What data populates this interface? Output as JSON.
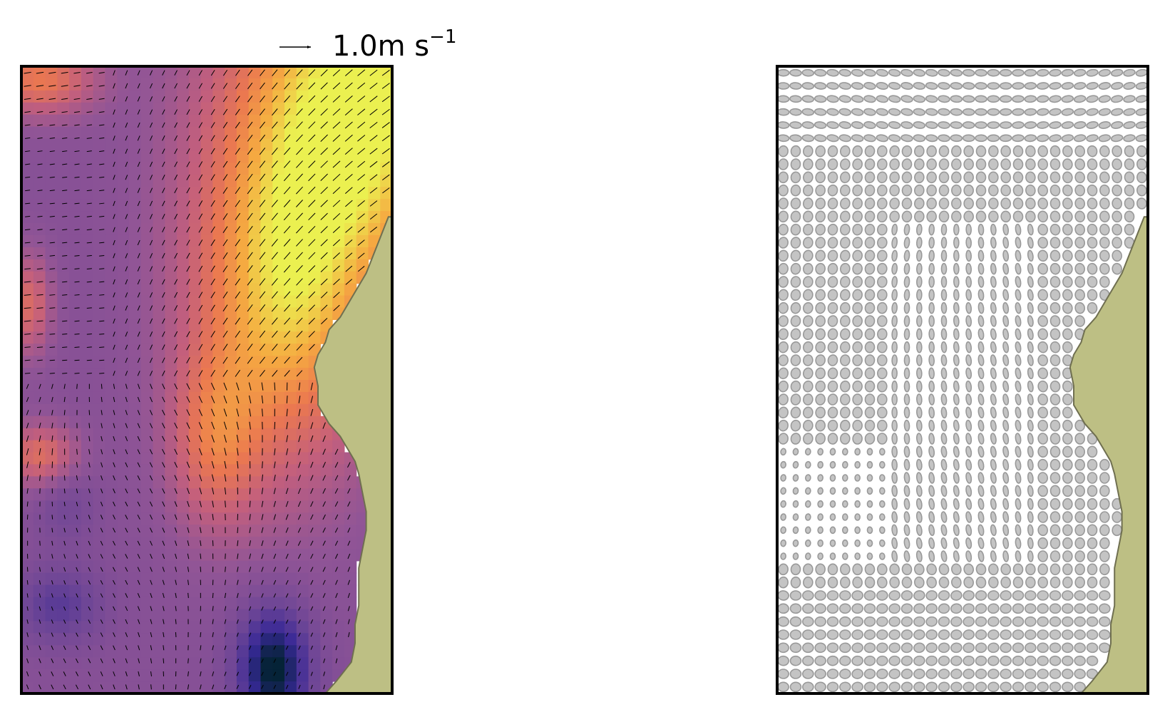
{
  "figure": {
    "scale_key": {
      "value": "1.0",
      "unit": "m s",
      "exponent": "−1",
      "magnitude_ms": 1.0
    }
  },
  "chart_data": [
    {
      "type": "heatmap",
      "panel": "left",
      "description_overlay": "quiver",
      "colormap": "plasma",
      "land_color": "#bdbf84",
      "title": "",
      "xlabel": "",
      "ylabel": "",
      "grid": false,
      "grid_size": {
        "cols": 21,
        "rows": 36
      },
      "quiver_key": {
        "value": 1.0,
        "unit": "m s−1"
      }
    },
    {
      "type": "scatter",
      "panel": "right",
      "marker": "ellipse",
      "marker_color": "#a6a6a6",
      "land_color": "#bdbf84",
      "title": "",
      "xlabel": "",
      "ylabel": "",
      "grid": false,
      "grid_size": {
        "cols": 30,
        "rows": 48
      }
    }
  ]
}
